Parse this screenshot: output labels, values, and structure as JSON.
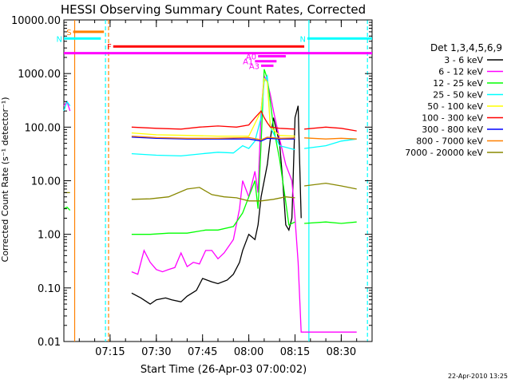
{
  "chart_data": {
    "type": "line",
    "title": "HESSI Observing Summary Count Rates, Corrected",
    "xlabel": "Start Time (26-Apr-03 07:00:02)",
    "ylabel": "Corrected Count Rate (s⁻¹ detector⁻¹)",
    "yscale": "log",
    "ylim": [
      0.01,
      10000
    ],
    "xlim_minutes": [
      0,
      100
    ],
    "x_ticks": [
      {
        "label": "07:15",
        "minute": 15
      },
      {
        "label": "07:30",
        "minute": 30
      },
      {
        "label": "07:45",
        "minute": 45
      },
      {
        "label": "08:00",
        "minute": 60
      },
      {
        "label": "08:15",
        "minute": 75
      },
      {
        "label": "08:30",
        "minute": 90
      }
    ],
    "y_ticks": [
      {
        "label": "10000.00",
        "value": 10000
      },
      {
        "label": "1000.00",
        "value": 1000
      },
      {
        "label": "100.00",
        "value": 100
      },
      {
        "label": "10.00",
        "value": 10
      },
      {
        "label": "1.00",
        "value": 1
      },
      {
        "label": "0.10",
        "value": 0.1
      },
      {
        "label": "0.01",
        "value": 0.01
      }
    ],
    "legend_title": "Det 1,3,4,5,6,9",
    "legend_position": "right",
    "series": [
      {
        "name": "3 - 6 keV",
        "color": "#000000",
        "x": [
          22,
          25,
          28,
          30,
          33,
          35,
          38,
          40,
          43,
          45,
          48,
          50,
          53,
          55,
          57,
          58,
          60,
          62,
          63,
          64,
          66,
          67,
          68,
          70,
          71,
          72,
          73,
          74,
          75,
          76,
          77
        ],
        "y": [
          0.08,
          0.065,
          0.05,
          0.06,
          0.065,
          0.06,
          0.055,
          0.07,
          0.09,
          0.15,
          0.13,
          0.12,
          0.14,
          0.18,
          0.3,
          0.5,
          1.0,
          0.8,
          1.5,
          5.0,
          20,
          60,
          150,
          50,
          10,
          1.5,
          1.2,
          2.0,
          150,
          250,
          2
        ]
      },
      {
        "name": "6 - 12 keV",
        "color": "#ff00ff",
        "x": [
          22,
          24,
          26,
          28,
          30,
          32,
          34,
          36,
          38,
          40,
          42,
          44,
          46,
          48,
          50,
          52,
          55,
          57,
          58,
          60,
          62,
          63,
          64,
          65,
          66,
          67,
          68,
          70,
          72,
          74,
          75,
          76,
          77,
          78
        ],
        "y": [
          0.2,
          0.18,
          0.5,
          0.3,
          0.22,
          0.2,
          0.22,
          0.24,
          0.45,
          0.25,
          0.3,
          0.28,
          0.5,
          0.5,
          0.35,
          0.45,
          0.8,
          3.0,
          10,
          5.0,
          15,
          6.0,
          200,
          900,
          700,
          400,
          200,
          60,
          20,
          10,
          2.0,
          0.3,
          0.015,
          0.015
        ]
      },
      {
        "name": "12 - 25 keV",
        "color": "#00ff00",
        "x": [
          22,
          28,
          34,
          40,
          46,
          50,
          55,
          58,
          60,
          62,
          63,
          64,
          65,
          66,
          67,
          68,
          70,
          72,
          73,
          74,
          75
        ],
        "y": [
          1.0,
          1.0,
          1.05,
          1.05,
          1.2,
          1.2,
          1.4,
          2.5,
          5.0,
          10,
          3.0,
          50,
          1200,
          800,
          300,
          100,
          25,
          4.0,
          1.5,
          1.6,
          1.7
        ]
      },
      {
        "name": "25 - 50 keV",
        "color": "#00ffff",
        "x": [
          22,
          30,
          38,
          45,
          50,
          55,
          58,
          60,
          62,
          64,
          65,
          66,
          67,
          70,
          75
        ],
        "y": [
          32,
          30,
          29,
          32,
          34,
          33,
          45,
          40,
          55,
          150,
          700,
          900,
          100,
          45,
          38
        ]
      },
      {
        "name": "50 - 100 keV",
        "color": "#ffff00",
        "x": [
          22,
          30,
          40,
          50,
          60,
          64,
          65,
          66,
          67,
          70,
          75
        ],
        "y": [
          78,
          72,
          70,
          68,
          68,
          200,
          800,
          700,
          100,
          70,
          68
        ]
      },
      {
        "name": "100 - 300 keV",
        "color": "#ff0000",
        "x": [
          22,
          30,
          38,
          44,
          50,
          56,
          60,
          62,
          64,
          65,
          66,
          67,
          70,
          75
        ],
        "y": [
          100,
          95,
          92,
          100,
          105,
          100,
          110,
          150,
          200,
          150,
          120,
          100,
          95,
          92
        ]
      },
      {
        "name": "300 - 800 keV",
        "color": "#0000ff",
        "x": [
          22,
          30,
          40,
          50,
          60,
          64,
          66,
          70,
          75
        ],
        "y": [
          65,
          62,
          60,
          60,
          60,
          55,
          62,
          60,
          60
        ]
      },
      {
        "name": "800 - 7000 keV",
        "color": "#ff8000",
        "x": [
          22,
          30,
          40,
          50,
          60,
          64,
          66,
          70,
          75
        ],
        "y": [
          68,
          64,
          62,
          62,
          64,
          58,
          65,
          62,
          63
        ]
      },
      {
        "name": "7000 - 20000 keV",
        "color": "#888800",
        "x": [
          22,
          28,
          34,
          40,
          44,
          48,
          52,
          56,
          60,
          64,
          68,
          72,
          75
        ],
        "y": [
          4.5,
          4.6,
          5.0,
          7.0,
          7.5,
          5.5,
          5.0,
          4.8,
          4.2,
          4.2,
          4.5,
          5.0,
          4.8
        ]
      }
    ],
    "post_eclipse_series": [
      {
        "name": "6 - 12 keV",
        "x": [
          78,
          85,
          90,
          95
        ],
        "y": [
          0.015,
          0.015,
          0.015,
          0.015
        ],
        "color": "#ff00ff"
      },
      {
        "name": "12 - 25 keV",
        "x": [
          78,
          85,
          90,
          95
        ],
        "y": [
          1.6,
          1.7,
          1.6,
          1.7
        ],
        "color": "#00ff00"
      },
      {
        "name": "25 - 50 keV",
        "x": [
          78,
          85,
          90,
          95
        ],
        "y": [
          40,
          45,
          55,
          60
        ],
        "color": "#00ffff"
      },
      {
        "name": "100 - 300 keV",
        "x": [
          78,
          85,
          90,
          95
        ],
        "y": [
          92,
          100,
          95,
          85
        ],
        "color": "#ff0000"
      },
      {
        "name": "800 - 7000 keV",
        "x": [
          78,
          85,
          90,
          95
        ],
        "y": [
          63,
          60,
          62,
          60
        ],
        "color": "#ff8000"
      },
      {
        "name": "7000 - 20000 keV",
        "x": [
          78,
          85,
          90,
          95
        ],
        "y": [
          8,
          9,
          8,
          7
        ],
        "color": "#888800"
      }
    ],
    "pre_gap_series": [
      {
        "name": "6 - 12 keV",
        "x": [
          0,
          1,
          2
        ],
        "y": [
          250,
          300,
          200
        ],
        "color": "#ff00ff"
      },
      {
        "name": "12 - 25 keV",
        "x": [
          0,
          1,
          2
        ],
        "y": [
          3.0,
          3.2,
          2.8
        ],
        "color": "#00ff00"
      },
      {
        "name": "25 - 50 keV",
        "x": [
          0,
          1,
          2
        ],
        "y": [
          200,
          300,
          250
        ],
        "color": "#00ffff"
      },
      {
        "name": "7000 - 20000 keV",
        "x": [
          0,
          1,
          2
        ],
        "y": [
          6,
          6,
          6
        ],
        "color": "#888800"
      }
    ],
    "flag_bars": [
      {
        "label": "S",
        "x_start": 3,
        "x_end": 13,
        "y_value": 6000,
        "color": "#ff8000"
      },
      {
        "label": "N",
        "x_start": 0,
        "x_end": 12,
        "y_value": 4500,
        "color": "#00ffff"
      },
      {
        "label": "N",
        "x_start": 79,
        "x_end": 100,
        "y_value": 4500,
        "color": "#00ffff"
      },
      {
        "label": "F",
        "x_start": 16,
        "x_end": 78,
        "y_value": 3200,
        "color": "#ff0000"
      },
      {
        "label": "",
        "x_start": 0,
        "x_end": 100,
        "y_value": 2400,
        "color": "#ff00ff"
      },
      {
        "label": "A0",
        "x_start": 63,
        "x_end": 72,
        "y_value": 2100,
        "color": "#ff00ff"
      },
      {
        "label": "A1",
        "x_start": 62,
        "x_end": 69,
        "y_value": 1700,
        "color": "#ff00ff"
      },
      {
        "label": "A3",
        "x_start": 64,
        "x_end": 68,
        "y_value": 1400,
        "color": "#ff00ff"
      }
    ],
    "vertical_markers": [
      {
        "minute": 3.5,
        "color": "#ff8000",
        "style": "solid"
      },
      {
        "minute": 13.5,
        "color": "#00ffff",
        "style": "dashed"
      },
      {
        "minute": 14.5,
        "color": "#ff8000",
        "style": "dashed"
      },
      {
        "minute": 79.5,
        "color": "#00ffff",
        "style": "solid"
      },
      {
        "minute": 98.5,
        "color": "#00ffff",
        "style": "dashed"
      }
    ],
    "footer_date": "22-Apr-2010 13:25"
  }
}
